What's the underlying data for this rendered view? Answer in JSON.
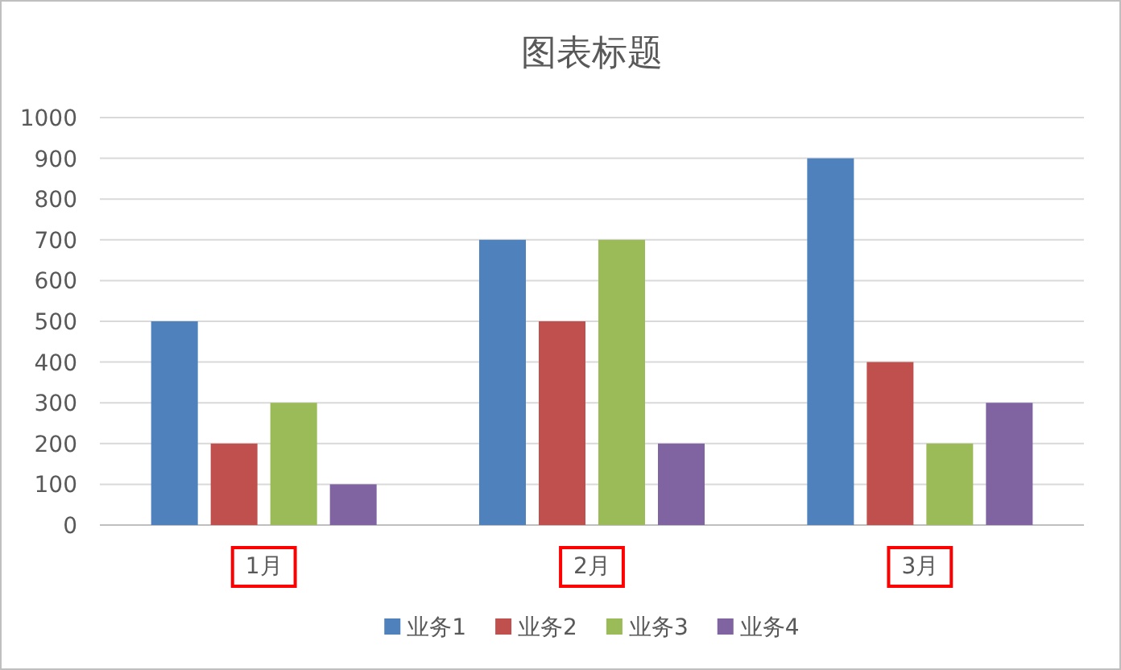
{
  "chart_data": {
    "type": "bar",
    "title": "图表标题",
    "categories": [
      "1月",
      "2月",
      "3月"
    ],
    "series": [
      {
        "name": "业务1",
        "color": "#4f81bd",
        "values": [
          500,
          700,
          900
        ]
      },
      {
        "name": "业务2",
        "color": "#c0504d",
        "values": [
          200,
          500,
          400
        ]
      },
      {
        "name": "业务3",
        "color": "#9bbb59",
        "values": [
          300,
          700,
          200
        ]
      },
      {
        "name": "业务4",
        "color": "#8064a2",
        "values": [
          100,
          200,
          300
        ]
      }
    ],
    "ylim": [
      0,
      1000
    ],
    "yticks": [
      0,
      100,
      200,
      300,
      400,
      500,
      600,
      700,
      800,
      900,
      1000
    ],
    "grid": "y",
    "legend": "bottom"
  }
}
